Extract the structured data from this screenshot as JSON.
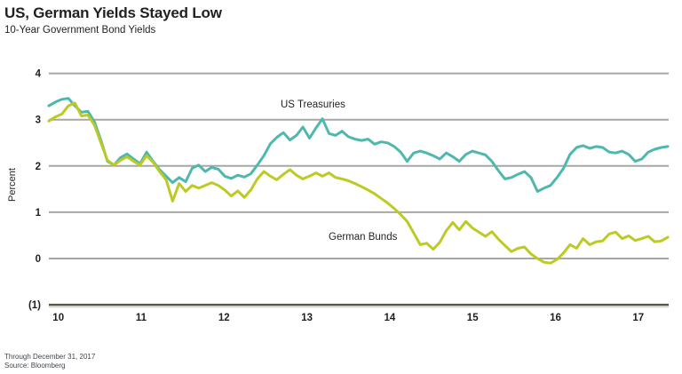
{
  "header": {
    "title": "US, German Yields Stayed Low",
    "subtitle": "10-Year Government Bond Yields"
  },
  "footer": {
    "note": "Through December 31, 2017",
    "source": "Source: Bloomberg"
  },
  "colors": {
    "us_line": "#4fb8ac",
    "german_line": "#bdca24",
    "gridline": "#a7a7a2",
    "axis_dark": "#55564f",
    "axis_light": "#d9d8c9",
    "text": "#231f20",
    "footnote_text": "#41474e",
    "background": "#ffffff"
  },
  "chart_data": {
    "type": "line",
    "title": "US, German Yields Stayed Low",
    "subtitle": "10-Year Government Bond Yields",
    "ylabel": "Percent",
    "ylim": [
      -1,
      4
    ],
    "yticks": [
      4,
      3,
      2,
      1,
      0,
      -1
    ],
    "ytick_labels": [
      "4",
      "3",
      "2",
      "1",
      "0",
      "(1)"
    ],
    "x_labels": [
      "10",
      "11",
      "12",
      "13",
      "14",
      "15",
      "16",
      "17"
    ],
    "x_range_note": "monthly, Jan 2010 through Dec 2017",
    "grid": true,
    "legend_position": "inline-labels",
    "series": [
      {
        "name": "US Treasuries",
        "color": "#4fb8ac",
        "values": [
          3.3,
          3.38,
          3.44,
          3.46,
          3.3,
          3.16,
          3.18,
          2.95,
          2.55,
          2.1,
          2.02,
          2.18,
          2.26,
          2.15,
          2.05,
          2.3,
          2.1,
          1.92,
          1.78,
          1.64,
          1.75,
          1.66,
          1.95,
          2.02,
          1.88,
          1.97,
          1.93,
          1.78,
          1.73,
          1.8,
          1.76,
          1.83,
          2.02,
          2.22,
          2.48,
          2.62,
          2.72,
          2.56,
          2.66,
          2.84,
          2.6,
          2.82,
          3.02,
          2.7,
          2.66,
          2.75,
          2.63,
          2.58,
          2.55,
          2.58,
          2.47,
          2.52,
          2.5,
          2.42,
          2.3,
          2.1,
          2.28,
          2.32,
          2.28,
          2.22,
          2.15,
          2.28,
          2.2,
          2.1,
          2.25,
          2.32,
          2.28,
          2.24,
          2.1,
          1.9,
          1.72,
          1.75,
          1.82,
          1.88,
          1.75,
          1.45,
          1.52,
          1.58,
          1.75,
          1.95,
          2.25,
          2.4,
          2.44,
          2.38,
          2.42,
          2.4,
          2.3,
          2.28,
          2.32,
          2.25,
          2.1,
          2.15,
          2.3,
          2.36,
          2.4,
          2.42
        ]
      },
      {
        "name": "German Bunds",
        "color": "#bdca24",
        "values": [
          2.97,
          3.06,
          3.12,
          3.3,
          3.36,
          3.08,
          3.1,
          2.88,
          2.5,
          2.12,
          2.02,
          2.12,
          2.2,
          2.1,
          2.02,
          2.22,
          2.08,
          1.88,
          1.7,
          1.24,
          1.62,
          1.45,
          1.58,
          1.52,
          1.58,
          1.64,
          1.58,
          1.48,
          1.35,
          1.46,
          1.32,
          1.48,
          1.72,
          1.88,
          1.78,
          1.7,
          1.82,
          1.92,
          1.8,
          1.72,
          1.78,
          1.85,
          1.78,
          1.85,
          1.75,
          1.72,
          1.68,
          1.62,
          1.55,
          1.48,
          1.4,
          1.3,
          1.2,
          1.08,
          0.95,
          0.8,
          0.55,
          0.3,
          0.33,
          0.2,
          0.35,
          0.6,
          0.78,
          0.62,
          0.8,
          0.66,
          0.57,
          0.48,
          0.58,
          0.42,
          0.28,
          0.15,
          0.22,
          0.25,
          0.1,
          0.0,
          -0.08,
          -0.1,
          -0.02,
          0.12,
          0.3,
          0.22,
          0.43,
          0.3,
          0.36,
          0.38,
          0.53,
          0.57,
          0.43,
          0.49,
          0.39,
          0.43,
          0.48,
          0.36,
          0.38,
          0.46
        ]
      }
    ]
  }
}
